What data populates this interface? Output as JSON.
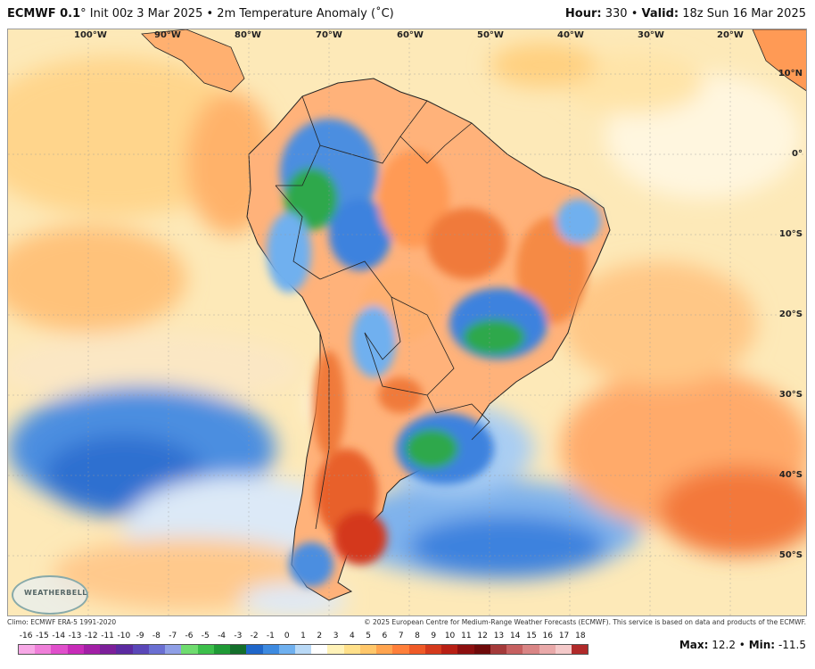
{
  "header": {
    "model": "ECMWF 0.1",
    "degree_mark": "°",
    "init": "Init 00z 3 Mar 2025",
    "bullet": "•",
    "field": "2m Temperature Anomaly (˚C)",
    "hour_label": "Hour:",
    "hour_value": "330",
    "valid_label": "Valid:",
    "valid_value": "18z Sun 16 Mar 2025"
  },
  "map": {
    "longitudes": [
      "100°W",
      "90°W",
      "80°W",
      "70°W",
      "60°W",
      "50°W",
      "40°W",
      "30°W",
      "20°W"
    ],
    "latitudes": [
      "10°N",
      "0°",
      "10°S",
      "20°S",
      "30°S",
      "40°S",
      "50°S"
    ],
    "logo_text": "WEATHERBELL"
  },
  "footer": {
    "climo": "Climo: ECMWF ERA-5 1991-2020",
    "copyright": "© 2025 European Centre for Medium-Range Weather Forecasts (ECMWF). This service is based on data and products of the ECMWF."
  },
  "scale": {
    "labels": [
      "-16",
      "-15",
      "-14",
      "-13",
      "-12",
      "-11",
      "-10",
      "-9",
      "-8",
      "-7",
      "-6",
      "-5",
      "-4",
      "-3",
      "-2",
      "-1",
      "0",
      "1",
      "2",
      "3",
      "4",
      "5",
      "6",
      "7",
      "8",
      "9",
      "10",
      "11",
      "12",
      "13",
      "14",
      "15",
      "16",
      "17",
      "18"
    ],
    "colors": [
      "#f7a8e6",
      "#ef7fd9",
      "#e04fcb",
      "#c72bb8",
      "#a21fa6",
      "#7c1f9a",
      "#5b2aa0",
      "#5a47b8",
      "#6a6fd2",
      "#8f9fe6",
      "#6fdc6f",
      "#3cbf4a",
      "#1f9a35",
      "#146f2b",
      "#1f66c9",
      "#3d8ae0",
      "#6fb0ef",
      "#b9d9f6",
      "#ffffff",
      "#fff2b8",
      "#ffe08a",
      "#ffc76a",
      "#ffa44f",
      "#ff7f3a",
      "#ef5a27",
      "#d4391c",
      "#b81f14",
      "#8c0f0f",
      "#6e0a0a",
      "#a43a3a",
      "#c66060",
      "#d98585",
      "#e9a9a9",
      "#f4c9c9",
      "#b02a2a"
    ]
  },
  "stats": {
    "max_label": "Max:",
    "max_value": "12.2",
    "min_label": "Min:",
    "min_value": "-11.5"
  }
}
